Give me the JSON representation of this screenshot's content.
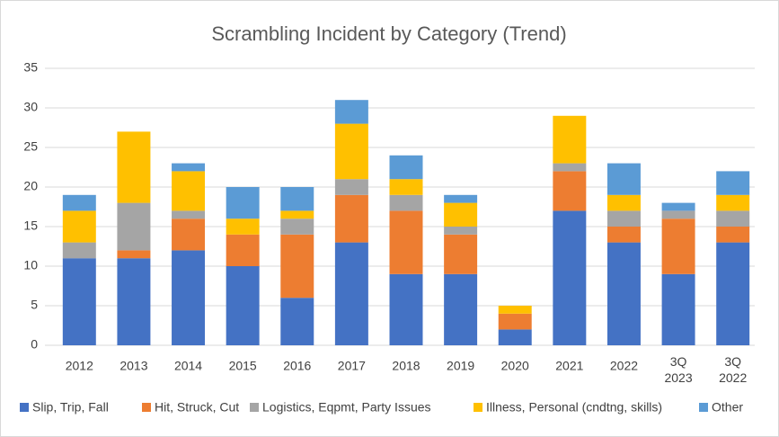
{
  "chart_data": {
    "type": "stacked_bar",
    "title": "Scrambling Incident by Category (Trend)",
    "categories": [
      "2012",
      "2013",
      "2014",
      "2015",
      "2016",
      "2017",
      "2018",
      "2019",
      "2020",
      "2021",
      "2022",
      "3Q 2023",
      "3Q 2022"
    ],
    "series": [
      {
        "name": "Slip, Trip, Fall",
        "color": "#4472c4",
        "values": [
          11,
          11,
          12,
          10,
          6,
          13,
          9,
          9,
          2,
          17,
          13,
          9,
          13
        ]
      },
      {
        "name": "Hit, Struck, Cut",
        "color": "#ed7d31",
        "values": [
          0,
          1,
          4,
          4,
          8,
          6,
          8,
          5,
          2,
          5,
          2,
          7,
          2
        ]
      },
      {
        "name": "Logistics, Eqpmt, Party Issues",
        "color": "#a5a5a5",
        "values": [
          2,
          6,
          1,
          0,
          2,
          2,
          2,
          1,
          0,
          1,
          2,
          1,
          2
        ]
      },
      {
        "name": "Illness, Personal (cndtng, skills)",
        "color": "#ffc000",
        "values": [
          4,
          9,
          5,
          2,
          1,
          7,
          2,
          3,
          1,
          6,
          2,
          0,
          2
        ]
      },
      {
        "name": "Other",
        "color": "#5b9bd5",
        "values": [
          2,
          0,
          1,
          4,
          3,
          3,
          3,
          1,
          0,
          0,
          4,
          1,
          3
        ]
      }
    ],
    "ylim": [
      0,
      35
    ],
    "yticks": [
      0,
      5,
      10,
      15,
      20,
      25,
      30,
      35
    ],
    "grid": true,
    "legend": "bottom"
  }
}
